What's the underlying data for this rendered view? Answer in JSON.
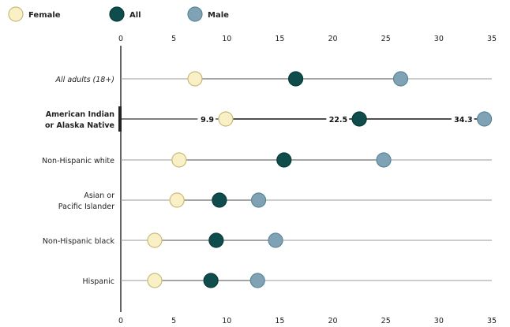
{
  "legend": [
    {
      "name": "Female",
      "color": "#f9f0c6"
    },
    {
      "name": "All",
      "color": "#0f4c4c"
    },
    {
      "name": "Male",
      "color": "#7fa3b5"
    }
  ],
  "chart_data": {
    "type": "scatter",
    "orientation": "horizontal",
    "xlim": [
      0,
      35
    ],
    "x_ticks": [
      "0",
      "5",
      "10",
      "15",
      "20",
      "25",
      "30",
      "35"
    ],
    "grid": false,
    "legend_position": "top-left",
    "categories": [
      "All adults (18+)",
      "American Indian or Alaska Native",
      "Non-Hispanic white",
      "Asian or Pacific Islander",
      "Non-Hispanic black",
      "Hispanic"
    ],
    "category_lines": [
      [
        "All adults (18+)"
      ],
      [
        "American Indian",
        "or Alaska Native"
      ],
      [
        "Non-Hispanic white"
      ],
      [
        "Asian or",
        "Pacific Islander"
      ],
      [
        "Non-Hispanic black"
      ],
      [
        "Hispanic"
      ]
    ],
    "highlighted_category": "American Indian or Alaska Native",
    "series": [
      {
        "name": "Female",
        "values": [
          7,
          9.9,
          5.5,
          5.3,
          3.2,
          3.2
        ]
      },
      {
        "name": "All",
        "values": [
          16.5,
          22.5,
          15.4,
          9.3,
          9.0,
          8.5
        ]
      },
      {
        "name": "Male",
        "values": [
          26.4,
          34.3,
          24.8,
          13.0,
          14.6,
          12.9
        ]
      }
    ],
    "data_labels": {
      "category": "American Indian or Alaska Native",
      "values": [
        "9.9",
        "22.5",
        "34.3"
      ]
    }
  }
}
